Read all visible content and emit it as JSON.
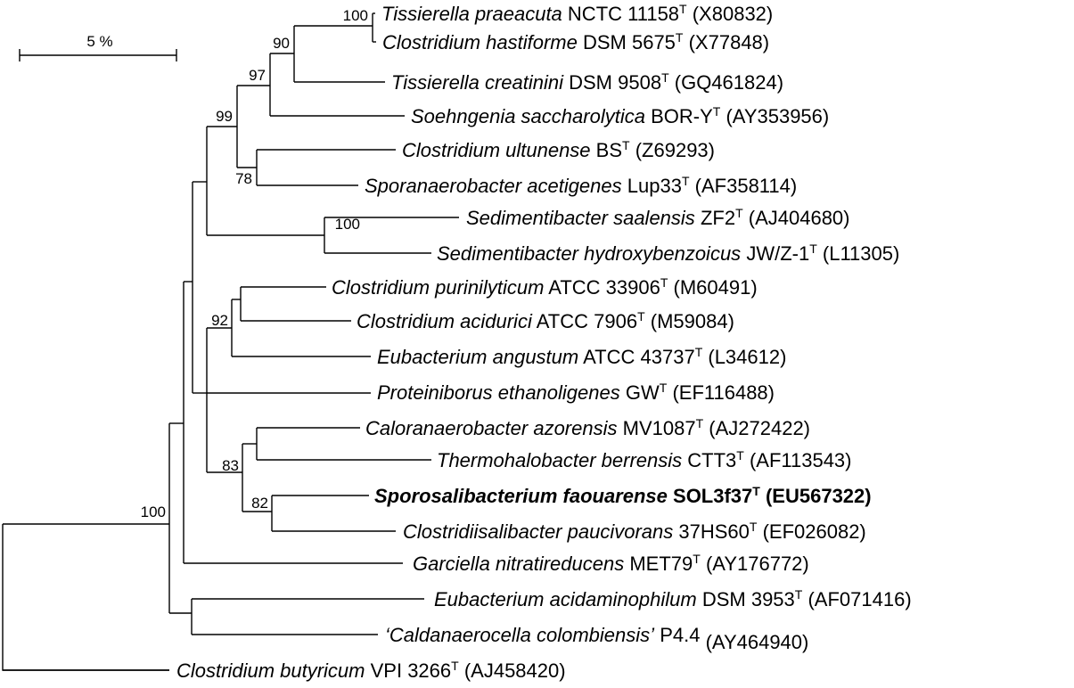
{
  "scale_bar": {
    "label": "5 %"
  },
  "taxa": [
    {
      "species": "Tissierella praeacuta",
      "strain": "NCTC 11158",
      "type": "T",
      "accession": "(X80832)",
      "bold": false
    },
    {
      "species": "Clostridium hastiforme",
      "strain": "DSM 5675",
      "type": "T",
      "accession": "(X77848)",
      "bold": false
    },
    {
      "species": "Tissierella creatinini",
      "strain": "DSM 9508",
      "type": "T",
      "accession": "(GQ461824)",
      "bold": false
    },
    {
      "species": "Soehngenia saccharolytica",
      "strain": "BOR-Y",
      "type": "T",
      "accession": "(AY353956)",
      "bold": false
    },
    {
      "species": "Clostridium ultunense",
      "strain": "BS",
      "type": "T",
      "accession": "(Z69293)",
      "bold": false
    },
    {
      "species": "Sporanaerobacter acetigenes",
      "strain": "Lup33",
      "type": "T",
      "accession": "(AF358114)",
      "bold": false
    },
    {
      "species": "Sedimentibacter saalensis",
      "strain": "ZF2",
      "type": "T",
      "accession": "(AJ404680)",
      "bold": false
    },
    {
      "species": "Sedimentibacter hydroxybenzoicus",
      "strain": "JW/Z-1",
      "type": "T",
      "accession": "(L11305)",
      "bold": false
    },
    {
      "species": "Clostridium purinilyticum",
      "strain": "ATCC 33906",
      "type": "T",
      "accession": "(M60491)",
      "bold": false
    },
    {
      "species": "Clostridium acidurici",
      "strain": "ATCC 7906",
      "type": "T",
      "accession": "(M59084)",
      "bold": false
    },
    {
      "species": "Eubacterium angustum",
      "strain": "ATCC 43737",
      "type": "T",
      "accession": "(L34612)",
      "bold": false
    },
    {
      "species": "Proteiniborus ethanoligenes",
      "strain": "GW",
      "type": "T",
      "accession": "(EF116488)",
      "bold": false
    },
    {
      "species": "Caloranaerobacter azorensis",
      "strain": "MV1087",
      "type": "T",
      "accession": "(AJ272422)",
      "bold": false
    },
    {
      "species": "Thermohalobacter berrensis",
      "strain": "CTT3",
      "type": "T",
      "accession": "(AF113543)",
      "bold": false
    },
    {
      "species": "Sporosalibacterium faouarense",
      "strain": "SOL3f37",
      "type": "T",
      "accession": "(EU567322)",
      "bold": true
    },
    {
      "species": "Clostridiisalibacter paucivorans",
      "strain": "37HS60",
      "type": "T",
      "accession": "(EF026082)",
      "bold": false
    },
    {
      "species": "Garciella nitratireducens",
      "strain": "MET79",
      "type": "T",
      "accession": "(AY176772)",
      "bold": false
    },
    {
      "species": "Eubacterium acidaminophilum",
      "strain": "DSM 3953",
      "type": "T",
      "accession": "(AF071416)",
      "bold": false
    },
    {
      "species": "‘Caldanaerocella colombiensis’",
      "strain": "P4.4",
      "type": "",
      "accession": "(AY464940)",
      "bold": false
    },
    {
      "species": "Clostridium butyricum",
      "strain": "VPI 3266",
      "type": "T",
      "accession": "(AJ458420)",
      "bold": false
    }
  ],
  "bootstrap": [
    "100",
    "90",
    "97",
    "99",
    "78",
    "100",
    "92",
    "83",
    "82",
    "100"
  ]
}
